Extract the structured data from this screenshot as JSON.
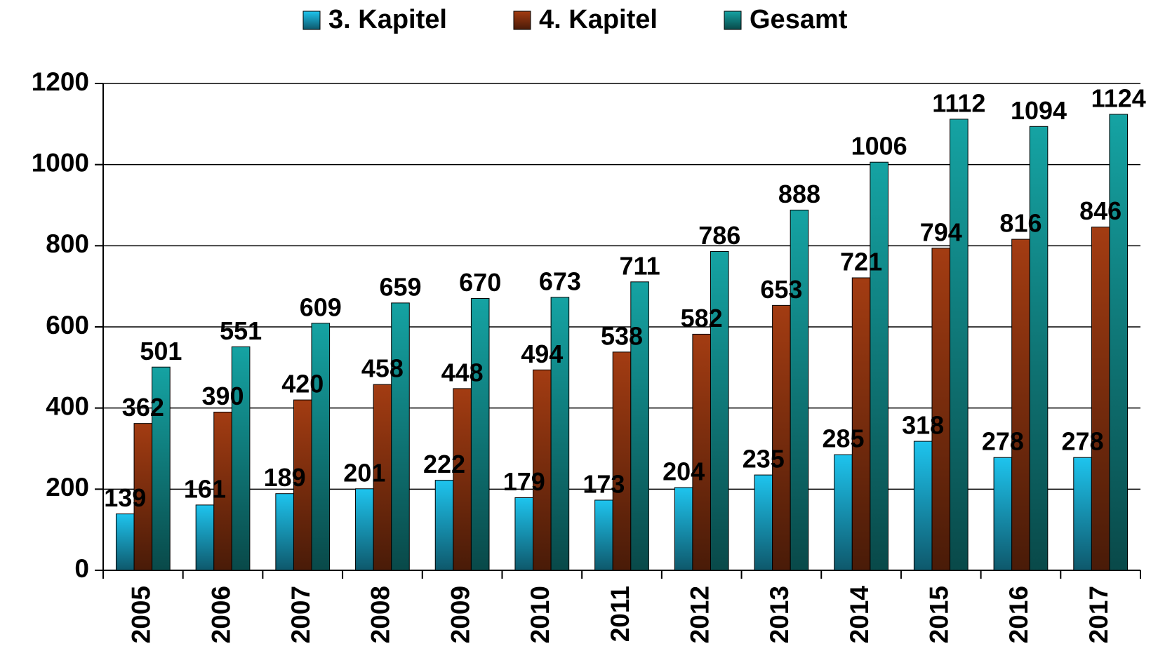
{
  "chart_data": {
    "type": "bar",
    "categories": [
      "2005",
      "2006",
      "2007",
      "2008",
      "2009",
      "2010",
      "2011",
      "2012",
      "2013",
      "2014",
      "2015",
      "2016",
      "2017"
    ],
    "series": [
      {
        "name": "3. Kapitel",
        "color": "#1ec4ee",
        "values": [
          139,
          161,
          189,
          201,
          222,
          179,
          173,
          204,
          235,
          285,
          318,
          278,
          278
        ]
      },
      {
        "name": "4. Kapitel",
        "color": "#a33c12",
        "values": [
          362,
          390,
          420,
          458,
          448,
          494,
          538,
          582,
          653,
          721,
          794,
          816,
          846
        ]
      },
      {
        "name": "Gesamt",
        "color": "#15a3a3",
        "values": [
          501,
          551,
          609,
          659,
          670,
          673,
          711,
          786,
          888,
          1006,
          1112,
          1094,
          1124
        ]
      }
    ],
    "ylim": [
      0,
      1200
    ],
    "yticks": [
      0,
      200,
      400,
      600,
      800,
      1000,
      1200
    ],
    "grid": true,
    "legend": "top"
  }
}
